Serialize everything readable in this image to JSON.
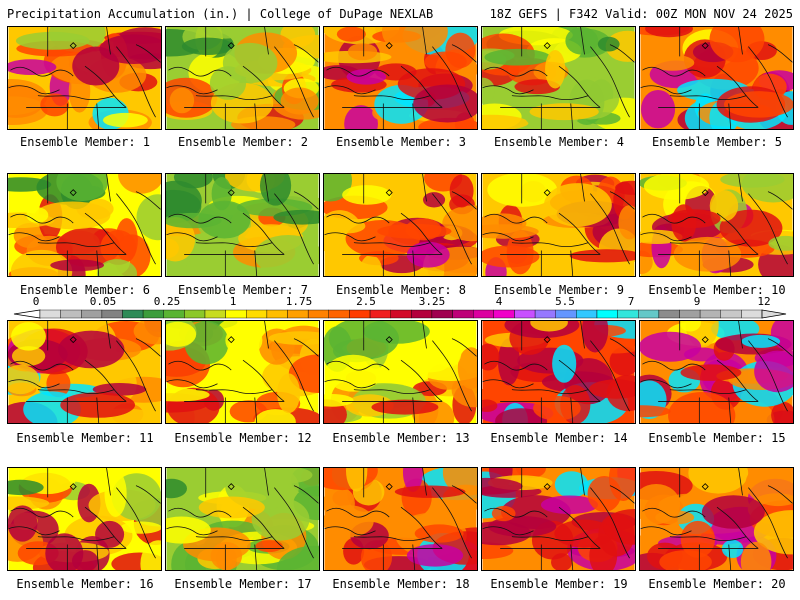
{
  "header": {
    "title_left": "Precipitation Accumulation (in.) | College of DuPage NEXLAB",
    "title_right": "18Z GEFS | F342 Valid: 00Z MON NOV 24 2025"
  },
  "member_label_prefix": "Ensemble Member: ",
  "members": [
    {
      "id": 1,
      "intensity": 0.62
    },
    {
      "id": 2,
      "intensity": 0.35
    },
    {
      "id": 3,
      "intensity": 0.72
    },
    {
      "id": 4,
      "intensity": 0.3
    },
    {
      "id": 5,
      "intensity": 0.7
    },
    {
      "id": 6,
      "intensity": 0.42
    },
    {
      "id": 7,
      "intensity": 0.25
    },
    {
      "id": 8,
      "intensity": 0.55
    },
    {
      "id": 9,
      "intensity": 0.58
    },
    {
      "id": 10,
      "intensity": 0.5
    },
    {
      "id": 11,
      "intensity": 0.6
    },
    {
      "id": 12,
      "intensity": 0.45
    },
    {
      "id": 13,
      "intensity": 0.38
    },
    {
      "id": 14,
      "intensity": 0.8
    },
    {
      "id": 15,
      "intensity": 0.75
    },
    {
      "id": 16,
      "intensity": 0.48
    },
    {
      "id": 17,
      "intensity": 0.28
    },
    {
      "id": 18,
      "intensity": 0.72
    },
    {
      "id": 19,
      "intensity": 0.78
    },
    {
      "id": 20,
      "intensity": 0.68
    }
  ],
  "colorbar": {
    "tick_labels": [
      "0",
      "0.05",
      "0.25",
      "1",
      "1.75",
      "2.5",
      "3.25",
      "4",
      "5.5",
      "7",
      "9",
      "12"
    ],
    "colors": [
      "#dcdcdc",
      "#bebebe",
      "#a0a0a0",
      "#828282",
      "#2e8b57",
      "#3c9d3c",
      "#5ab432",
      "#8cc828",
      "#c8dc1e",
      "#ffff00",
      "#ffdc00",
      "#ffbe00",
      "#ffa000",
      "#ff8200",
      "#ff6400",
      "#ff3c00",
      "#f01e1e",
      "#d20a28",
      "#b4003c",
      "#a00050",
      "#be0078",
      "#dc00a0",
      "#f000c8",
      "#c850ff",
      "#9678ff",
      "#6496ff",
      "#32c8ff",
      "#00ffff",
      "#32e6dc",
      "#64c8c8",
      "#8c8c8c",
      "#a0a0a0",
      "#b4b4b4",
      "#c8c8c8",
      "#dcdcdc"
    ]
  }
}
